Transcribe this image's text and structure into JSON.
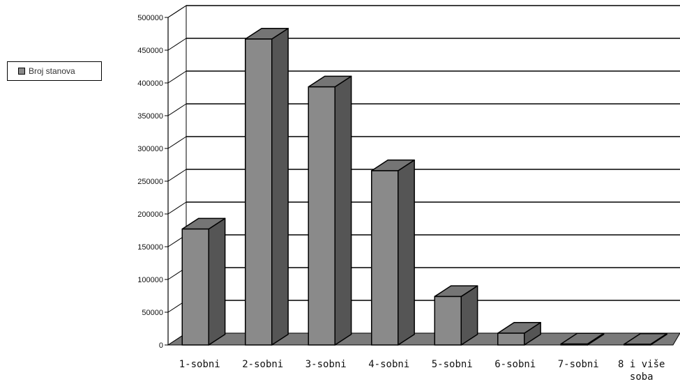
{
  "chart_data": {
    "type": "bar",
    "title": "",
    "xlabel": "",
    "ylabel": "",
    "categories": [
      "1-sobni",
      "2-sobni",
      "3-sobni",
      "4-sobni",
      "5-sobni",
      "6-sobni",
      "7-sobni",
      "8 i više soba"
    ],
    "series": [
      {
        "name": "Broj stanova",
        "values": [
          177000,
          467000,
          394000,
          266000,
          74000,
          18000,
          1500,
          1000
        ]
      }
    ],
    "ylim": [
      0,
      500000
    ],
    "yticks": [
      "0",
      "50000",
      "100000",
      "150000",
      "200000",
      "250000",
      "300000",
      "350000",
      "400000",
      "450000",
      "500000"
    ],
    "grid": true,
    "legend_position": "left",
    "three_d": true,
    "colors": {
      "bar_front": "#8a8a8a",
      "bar_side": "#555555",
      "bar_top": "#757575",
      "floor": "#7a7a7a"
    }
  }
}
